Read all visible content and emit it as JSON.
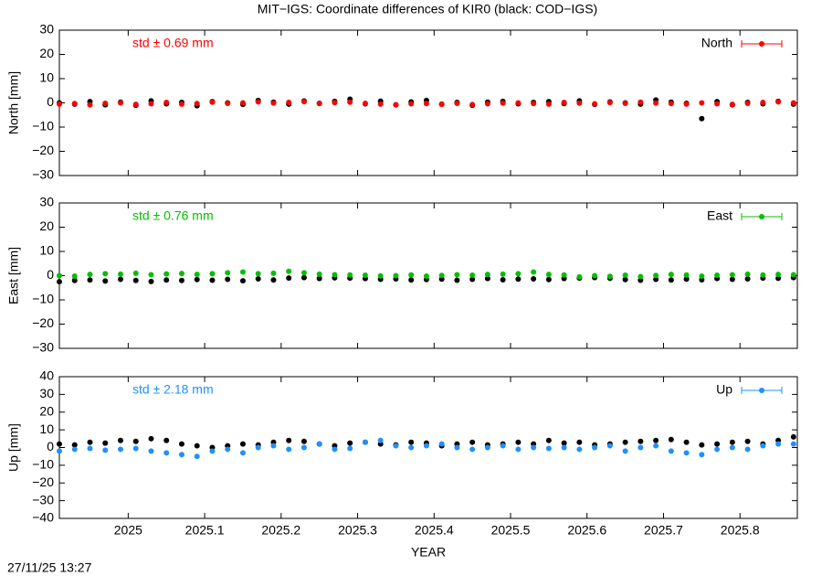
{
  "title": "MIT−IGS: Coordinate differences of KIR0 (black: COD−IGS)",
  "timestamp": "27/11/25 13:27",
  "chart_data": [
    {
      "type": "scatter",
      "ylabel": "North [mm]",
      "annotation": "std ± 0.69 mm",
      "legend": "top-right",
      "x": [
        2024.91,
        2024.93,
        2024.95,
        2024.97,
        2024.99,
        2025.01,
        2025.03,
        2025.05,
        2025.07,
        2025.09,
        2025.11,
        2025.13,
        2025.15,
        2025.17,
        2025.19,
        2025.21,
        2025.23,
        2025.25,
        2025.27,
        2025.29,
        2025.31,
        2025.33,
        2025.35,
        2025.37,
        2025.39,
        2025.41,
        2025.43,
        2025.45,
        2025.47,
        2025.49,
        2025.51,
        2025.53,
        2025.55,
        2025.57,
        2025.59,
        2025.61,
        2025.63,
        2025.65,
        2025.67,
        2025.69,
        2025.71,
        2025.73,
        2025.75,
        2025.77,
        2025.79,
        2025.81,
        2025.83,
        2025.85,
        2025.87
      ],
      "xlim": [
        2024.91,
        2025.875
      ],
      "xticks": [
        2025,
        2025.1,
        2025.2,
        2025.3,
        2025.4,
        2025.5,
        2025.6,
        2025.7,
        2025.8
      ],
      "ylim": [
        -30,
        30
      ],
      "yticks": [
        {
          "value": -30,
          "label": "−30"
        },
        {
          "value": -20,
          "label": "−20"
        },
        {
          "value": -10,
          "label": "−10"
        },
        0,
        10,
        20,
        30
      ],
      "series": [
        {
          "color": "#000000",
          "values": [
            0,
            -0.5,
            0.5,
            -0.8,
            0.3,
            -1,
            0.8,
            -0.4,
            0.2,
            -1.2,
            0.5,
            0,
            -0.6,
            1,
            0.3,
            -0.5,
            0.8,
            -0.2,
            0.6,
            1.5,
            -0.4,
            0.7,
            -0.8,
            0.4,
            1,
            -0.5,
            0.2,
            -1,
            0.3,
            0.6,
            -0.4,
            0.2,
            0.5,
            -0.3,
            0.8,
            -0.6,
            0.4,
            0,
            -0.5,
            1.2,
            0.3,
            -0.2,
            -6.5,
            0.5,
            -0.8,
            0.2,
            -0.4,
            0.6,
            -0.5
          ]
        },
        {
          "name": "North",
          "color": "#ff0000",
          "values": [
            -0.5,
            -0.3,
            -0.8,
            -0.2,
            0,
            -0.6,
            -0.4,
            0.2,
            -0.5,
            -0.3,
            0.3,
            -0.2,
            0,
            0.4,
            -0.1,
            0.2,
            0.5,
            -0.3,
            0.1,
            0.3,
            -0.2,
            -0.5,
            -0.8,
            -0.4,
            -0.3,
            -0.6,
            -0.2,
            -0.7,
            -0.4,
            -0.1,
            0,
            -0.3,
            -0.5,
            0.2,
            -0.1,
            -0.4,
            0.1,
            -0.2,
            0.3,
            -0.1,
            -0.3,
            -0.5,
            0,
            -0.4,
            -0.6,
            -0.2,
            0.2,
            0.4,
            0
          ]
        }
      ]
    },
    {
      "type": "scatter",
      "ylabel": "East [mm]",
      "annotation": "std ± 0.76 mm",
      "legend": "top-right",
      "x": [
        2024.91,
        2024.93,
        2024.95,
        2024.97,
        2024.99,
        2025.01,
        2025.03,
        2025.05,
        2025.07,
        2025.09,
        2025.11,
        2025.13,
        2025.15,
        2025.17,
        2025.19,
        2025.21,
        2025.23,
        2025.25,
        2025.27,
        2025.29,
        2025.31,
        2025.33,
        2025.35,
        2025.37,
        2025.39,
        2025.41,
        2025.43,
        2025.45,
        2025.47,
        2025.49,
        2025.51,
        2025.53,
        2025.55,
        2025.57,
        2025.59,
        2025.61,
        2025.63,
        2025.65,
        2025.67,
        2025.69,
        2025.71,
        2025.73,
        2025.75,
        2025.77,
        2025.79,
        2025.81,
        2025.83,
        2025.85,
        2025.87
      ],
      "xlim": [
        2024.91,
        2025.875
      ],
      "xticks": [
        2025,
        2025.1,
        2025.2,
        2025.3,
        2025.4,
        2025.5,
        2025.6,
        2025.7,
        2025.8
      ],
      "ylim": [
        -30,
        30
      ],
      "yticks": [
        {
          "value": -30,
          "label": "−30"
        },
        {
          "value": -20,
          "label": "−20"
        },
        {
          "value": -10,
          "label": "−10"
        },
        0,
        10,
        20,
        30
      ],
      "series": [
        {
          "color": "#000000",
          "values": [
            -2.5,
            -2,
            -1.8,
            -2.2,
            -1.5,
            -2,
            -2.4,
            -1.8,
            -2,
            -1.6,
            -1.9,
            -1.5,
            -2.1,
            -1.3,
            -1.8,
            -1,
            -0.8,
            -1.2,
            -0.9,
            -1,
            -1.2,
            -1.5,
            -1.3,
            -1.8,
            -1.6,
            -1.4,
            -1.9,
            -1.5,
            -1.2,
            -1.7,
            -1.4,
            -1.3,
            -1.6,
            -1.2,
            -1,
            -0.8,
            -1.1,
            -1.6,
            -1.9,
            -1.5,
            -1.8,
            -1.4,
            -1.7,
            -1.2,
            -1.5,
            -1.3,
            -1,
            -1.1,
            -0.8
          ]
        },
        {
          "name": "East",
          "color": "#00c000",
          "values": [
            0,
            -0.2,
            0.5,
            0.8,
            0.6,
            1,
            0.4,
            0.7,
            0.9,
            0.5,
            0.8,
            1.2,
            1.5,
            0.8,
            1,
            1.8,
            1.2,
            0.6,
            0.4,
            0.3,
            0.2,
            -0.1,
            0,
            0.3,
            -0.2,
            0.1,
            0.4,
            0.2,
            0.5,
            0.6,
            0.8,
            1.5,
            0.5,
            0.3,
            -0.5,
            0,
            -0.3,
            0.2,
            -0.4,
            0.1,
            0.5,
            0.3,
            -0.2,
            0.2,
            0.4,
            0.6,
            0.3,
            0.5,
            0.4
          ]
        }
      ]
    },
    {
      "type": "scatter",
      "ylabel": "Up [mm]",
      "xlabel": "YEAR",
      "annotation": "std ± 2.18 mm",
      "legend": "top-right",
      "x": [
        2024.91,
        2024.93,
        2024.95,
        2024.97,
        2024.99,
        2025.01,
        2025.03,
        2025.05,
        2025.07,
        2025.09,
        2025.11,
        2025.13,
        2025.15,
        2025.17,
        2025.19,
        2025.21,
        2025.23,
        2025.25,
        2025.27,
        2025.29,
        2025.31,
        2025.33,
        2025.35,
        2025.37,
        2025.39,
        2025.41,
        2025.43,
        2025.45,
        2025.47,
        2025.49,
        2025.51,
        2025.53,
        2025.55,
        2025.57,
        2025.59,
        2025.61,
        2025.63,
        2025.65,
        2025.67,
        2025.69,
        2025.71,
        2025.73,
        2025.75,
        2025.77,
        2025.79,
        2025.81,
        2025.83,
        2025.85,
        2025.87
      ],
      "xlim": [
        2024.91,
        2025.875
      ],
      "xticks": [
        2025,
        2025.1,
        2025.2,
        2025.3,
        2025.4,
        2025.5,
        2025.6,
        2025.7,
        2025.8
      ],
      "ylim": [
        -40,
        40
      ],
      "yticks": [
        {
          "value": -40,
          "label": "−40"
        },
        {
          "value": -30,
          "label": "−30"
        },
        {
          "value": -20,
          "label": "−20"
        },
        {
          "value": -10,
          "label": "−10"
        },
        0,
        10,
        20,
        30,
        40
      ],
      "series": [
        {
          "color": "#000000",
          "values": [
            2,
            1.5,
            3,
            2.5,
            4,
            3.5,
            5,
            4,
            2,
            1,
            0,
            1,
            2,
            1.5,
            3,
            4,
            3.5,
            2,
            1,
            2.5,
            3,
            2,
            1.5,
            3,
            2.5,
            1,
            2,
            3,
            1.5,
            2,
            3,
            2,
            4,
            2.5,
            3,
            1.5,
            2,
            3,
            3.5,
            4,
            4.5,
            3,
            1.5,
            2,
            3,
            3.5,
            2,
            4,
            6
          ]
        },
        {
          "name": "Up",
          "color": "#1e90ff",
          "values": [
            -2,
            -1,
            -0.5,
            -1.5,
            -1,
            -0.5,
            -2,
            -3,
            -4,
            -5,
            -2,
            -1,
            -3,
            0,
            1,
            -1,
            0,
            2,
            -1,
            -0.5,
            3,
            4,
            1,
            0,
            1,
            2,
            0,
            -1,
            0,
            1,
            -1,
            0,
            -0.5,
            0,
            -1,
            0,
            1,
            -2,
            0,
            1,
            -2,
            -3,
            -4,
            -1,
            0,
            -1,
            1,
            2,
            2
          ]
        }
      ]
    }
  ]
}
